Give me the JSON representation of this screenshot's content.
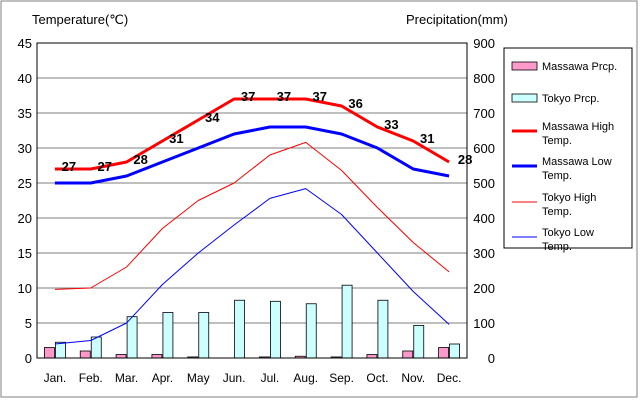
{
  "chart_data": {
    "type": "line",
    "left_axis_title": "Temperature(℃)",
    "right_axis_title": "Precipitation(mm)",
    "categories": [
      "Jan.",
      "Feb.",
      "Mar.",
      "Apr.",
      "May",
      "Jun.",
      "Jul.",
      "Aug.",
      "Sep.",
      "Oct.",
      "Nov.",
      "Dec."
    ],
    "left_axis": {
      "min": 0,
      "max": 45,
      "step": 5,
      "ticks": [
        "0",
        "5",
        "10",
        "15",
        "20",
        "25",
        "30",
        "35",
        "40",
        "45"
      ]
    },
    "right_axis": {
      "min": 0,
      "max": 900,
      "step": 100,
      "ticks": [
        "0",
        "100",
        "200",
        "300",
        "400",
        "500",
        "600",
        "700",
        "800",
        "900"
      ]
    },
    "grid": true,
    "legend_position": "right",
    "bar_series": [
      {
        "name": "Massawa Prcp.",
        "color": "#ff99cc",
        "values": [
          30,
          20,
          10,
          10,
          3,
          0,
          3,
          5,
          3,
          10,
          20,
          30
        ]
      },
      {
        "name": "Tokyo Prcp.",
        "color": "#ccffff",
        "values": [
          45,
          60,
          118,
          130,
          130,
          165,
          162,
          155,
          208,
          165,
          93,
          40
        ]
      }
    ],
    "line_series": [
      {
        "name": "Massawa High Temp.",
        "color": "#ff0000",
        "width": 3,
        "values": [
          27,
          27,
          28,
          31,
          34,
          37,
          37,
          37,
          36,
          33,
          31,
          28
        ],
        "labels": [
          "27",
          "27",
          "28",
          "31",
          "34",
          "37",
          "37",
          "37",
          "36",
          "33",
          "31",
          "28"
        ]
      },
      {
        "name": "Massawa Low Temp.",
        "color": "#0000ff",
        "width": 3,
        "values": [
          25,
          25,
          26,
          28,
          30,
          32,
          33,
          33,
          32,
          30,
          27,
          26
        ]
      },
      {
        "name": "Tokyo High Temp.",
        "color": "#ff0000",
        "width": 1,
        "values": [
          9.8,
          10,
          13,
          18.5,
          22.5,
          25,
          29,
          30.8,
          26.8,
          21.5,
          16.5,
          12.3
        ]
      },
      {
        "name": "Tokyo Low Temp.",
        "color": "#0000ff",
        "width": 1,
        "values": [
          2,
          2.5,
          5,
          10.5,
          15,
          19,
          22.8,
          24.2,
          20.5,
          15,
          9.5,
          4.8
        ]
      }
    ],
    "legend_labels": [
      [
        "Massawa Prcp."
      ],
      [
        "Tokyo Prcp."
      ],
      [
        "Massawa High",
        "Temp."
      ],
      [
        "Massawa Low",
        "Temp."
      ],
      [
        "Tokyo High",
        "Temp."
      ],
      [
        "Tokyo Low",
        "Temp."
      ]
    ]
  }
}
